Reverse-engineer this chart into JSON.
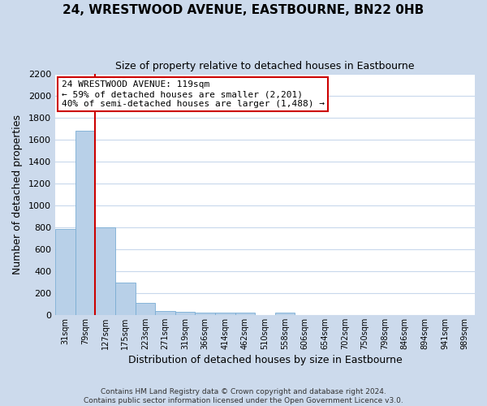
{
  "title": "24, WRESTWOOD AVENUE, EASTBOURNE, BN22 0HB",
  "subtitle": "Size of property relative to detached houses in Eastbourne",
  "xlabel": "Distribution of detached houses by size in Eastbourne",
  "ylabel": "Number of detached properties",
  "footer_line1": "Contains HM Land Registry data © Crown copyright and database right 2024.",
  "footer_line2": "Contains public sector information licensed under the Open Government Licence v3.0.",
  "bin_labels": [
    "31sqm",
    "79sqm",
    "127sqm",
    "175sqm",
    "223sqm",
    "271sqm",
    "319sqm",
    "366sqm",
    "414sqm",
    "462sqm",
    "510sqm",
    "558sqm",
    "606sqm",
    "654sqm",
    "702sqm",
    "750sqm",
    "798sqm",
    "846sqm",
    "894sqm",
    "941sqm",
    "989sqm"
  ],
  "bar_heights": [
    780,
    1680,
    800,
    295,
    110,
    35,
    28,
    25,
    20,
    18,
    0,
    20,
    0,
    0,
    0,
    0,
    0,
    0,
    0,
    0,
    0
  ],
  "bar_color": "#b8d0e8",
  "bar_edge_color": "#7aadd4",
  "vline_color": "#cc0000",
  "vline_x_index": 1.5,
  "annotation_line1": "24 WRESTWOOD AVENUE: 119sqm",
  "annotation_line2": "← 59% of detached houses are smaller (2,201)",
  "annotation_line3": "40% of semi-detached houses are larger (1,488) →",
  "annotation_box_facecolor": "#ffffff",
  "annotation_box_edgecolor": "#cc0000",
  "ylim": [
    0,
    2200
  ],
  "yticks": [
    0,
    200,
    400,
    600,
    800,
    1000,
    1200,
    1400,
    1600,
    1800,
    2000,
    2200
  ],
  "grid_color": "#c8d8ec",
  "bg_color": "#ccdaec",
  "plot_bg_color": "#ffffff",
  "title_fontsize": 11,
  "subtitle_fontsize": 9,
  "xlabel_fontsize": 9,
  "ylabel_fontsize": 9,
  "xtick_fontsize": 7,
  "ytick_fontsize": 8,
  "footer_fontsize": 6.5
}
